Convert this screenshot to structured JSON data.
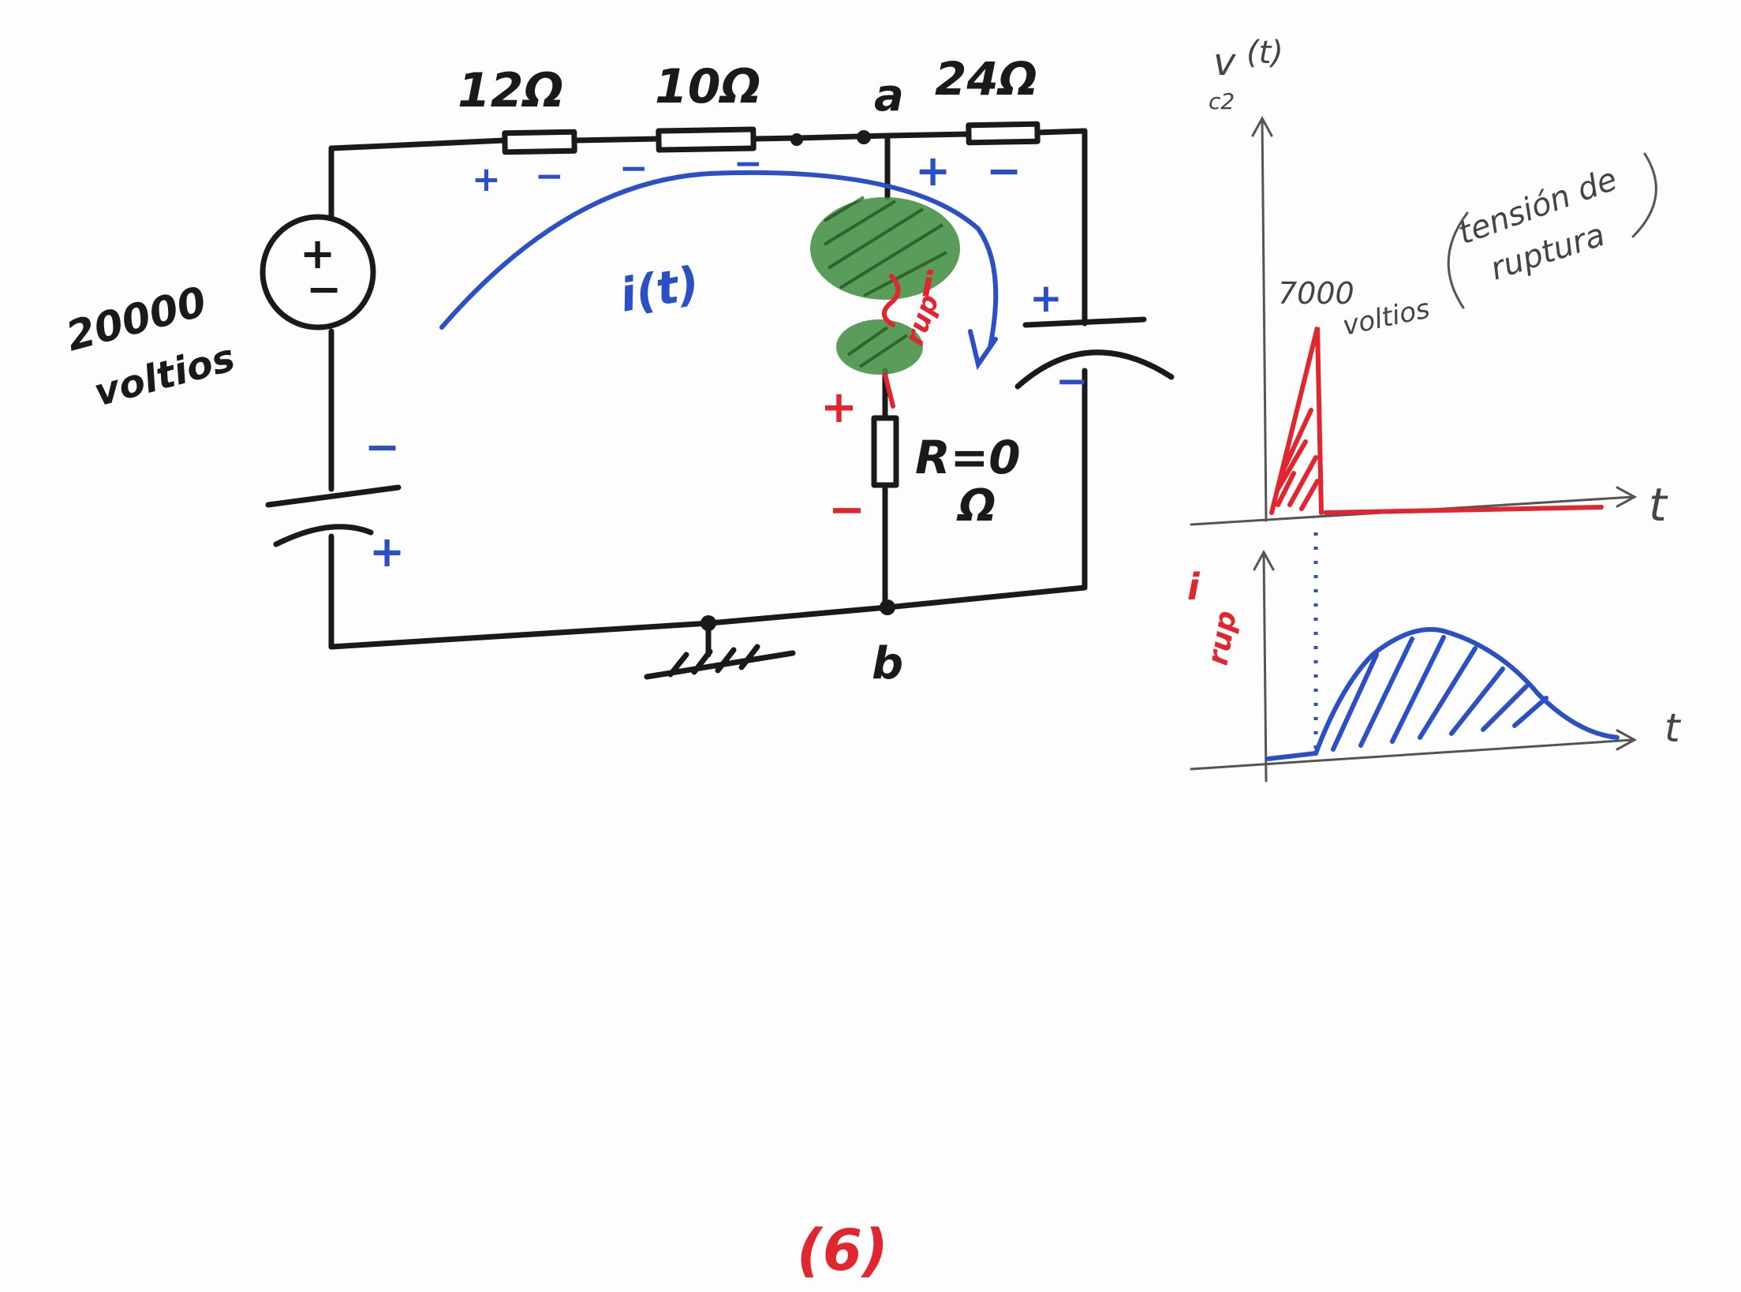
{
  "circuit": {
    "source_voltage_value": "20000",
    "source_voltage_unit": "voltios",
    "source_sign_plus": "+",
    "source_sign_minus": "−",
    "resistor_12": "12Ω",
    "resistor_10": "10Ω",
    "resistor_24": "24Ω",
    "node_a": "a",
    "node_b": "b",
    "current_label": "i(t)",
    "rupture_current_label": "i",
    "rupture_current_sub": "rup",
    "resistor_r_label": "R=0",
    "resistor_r_unit": "Ω",
    "plus": "+",
    "minus": "−",
    "colors": {
      "black": "#1a1a1a",
      "blue": "#2b4fc4",
      "red": "#e0262e",
      "green": "#2e7d32"
    }
  },
  "graph_voltage": {
    "y_label": "v",
    "y_label_sub": "c2",
    "y_label_arg": "(t)",
    "x_label": "t",
    "peak_label_value": "7000",
    "peak_label_unit": "voltios",
    "note_line1": "tensión de",
    "note_line2": "ruptura"
  },
  "graph_current": {
    "y_label": "i",
    "y_label_sub": "rup",
    "x_label": "t"
  },
  "page_number": "(6)"
}
